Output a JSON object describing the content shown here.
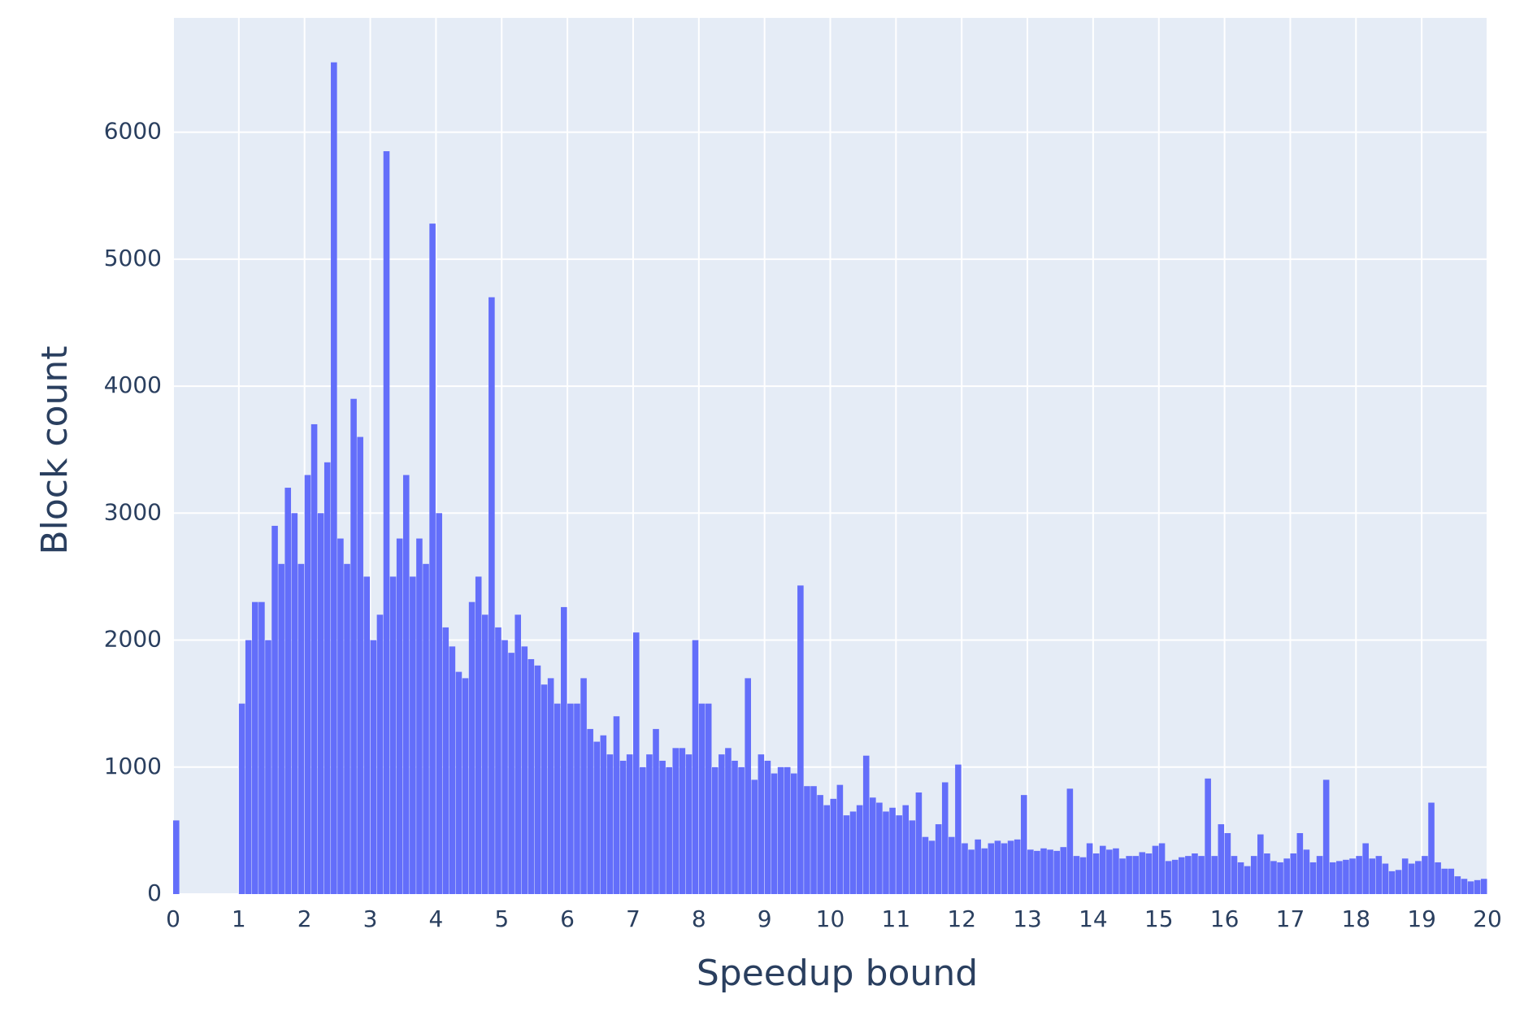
{
  "chart_data": {
    "type": "histogram",
    "xlabel": "Speedup bound",
    "ylabel": "Block count",
    "color": "#636efa",
    "grid": true,
    "xlim": [
      0,
      20
    ],
    "ylim": [
      0,
      6900
    ],
    "xticks": [
      0,
      1,
      2,
      3,
      4,
      5,
      6,
      7,
      8,
      9,
      10,
      11,
      12,
      13,
      14,
      15,
      16,
      17,
      18,
      19,
      20
    ],
    "yticks": [
      0,
      1000,
      2000,
      3000,
      4000,
      5000,
      6000
    ],
    "bins": [
      0,
      0.1,
      0.2,
      0.3,
      0.4,
      0.5,
      0.6,
      0.7,
      0.8,
      0.9,
      1,
      1.1,
      1.2,
      1.3,
      1.4,
      1.5,
      1.6,
      1.7,
      1.8,
      1.9,
      2,
      2.1,
      2.2,
      2.3,
      2.4,
      2.5,
      2.6,
      2.7,
      2.8,
      2.9,
      3,
      3.1,
      3.2,
      3.3,
      3.4,
      3.5,
      3.6,
      3.7,
      3.8,
      3.9,
      4,
      4.1,
      4.2,
      4.3,
      4.4,
      4.5,
      4.6,
      4.7,
      4.8,
      4.9,
      5,
      5.1,
      5.2,
      5.3,
      5.4,
      5.5,
      5.6,
      5.7,
      5.8,
      5.9,
      6,
      6.1,
      6.2,
      6.3,
      6.4,
      6.5,
      6.6,
      6.7,
      6.8,
      6.9,
      7,
      7.1,
      7.2,
      7.3,
      7.4,
      7.5,
      7.6,
      7.7,
      7.8,
      7.9,
      8,
      8.1,
      8.2,
      8.3,
      8.4,
      8.5,
      8.6,
      8.7,
      8.8,
      8.9,
      9,
      9.1,
      9.2,
      9.3,
      9.4,
      9.5,
      9.6,
      9.7,
      9.8,
      9.9,
      10,
      10.1,
      10.2,
      10.3,
      10.4,
      10.5,
      10.6,
      10.7,
      10.8,
      10.9,
      11,
      11.1,
      11.2,
      11.3,
      11.4,
      11.5,
      11.6,
      11.7,
      11.8,
      11.9,
      12,
      12.1,
      12.2,
      12.3,
      12.4,
      12.5,
      12.6,
      12.7,
      12.8,
      12.9,
      13,
      13.1,
      13.2,
      13.3,
      13.4,
      13.5,
      13.6,
      13.7,
      13.8,
      13.9,
      14,
      14.1,
      14.2,
      14.3,
      14.4,
      14.5,
      14.6,
      14.7,
      14.8,
      14.9,
      15,
      15.1,
      15.2,
      15.3,
      15.4,
      15.5,
      15.6,
      15.7,
      15.8,
      15.9,
      16,
      16.1,
      16.2,
      16.3,
      16.4,
      16.5,
      16.6,
      16.7,
      16.8,
      16.9,
      17,
      17.1,
      17.2,
      17.3,
      17.4,
      17.5,
      17.6,
      17.7,
      17.8,
      17.9,
      18,
      18.1,
      18.2,
      18.3,
      18.4,
      18.5,
      18.6,
      18.7,
      18.8,
      18.9,
      19,
      19.1,
      19.2,
      19.3,
      19.4,
      19.5,
      19.6,
      19.7,
      19.8,
      19.9,
      20
    ],
    "values": [
      580,
      0,
      0,
      0,
      0,
      0,
      0,
      0,
      0,
      0,
      1500,
      2000,
      2300,
      2300,
      2000,
      2900,
      2600,
      3200,
      3000,
      2600,
      3300,
      3700,
      3000,
      3400,
      6550,
      2800,
      2600,
      3900,
      3600,
      2500,
      2000,
      2200,
      5850,
      2500,
      2800,
      3300,
      2500,
      2800,
      2600,
      5280,
      3000,
      2100,
      1950,
      1750,
      1700,
      2300,
      2500,
      2200,
      4700,
      2100,
      2000,
      1900,
      2200,
      1950,
      1850,
      1800,
      1650,
      1700,
      1500,
      2260,
      1500,
      1500,
      1700,
      1300,
      1200,
      1250,
      1100,
      1400,
      1050,
      1100,
      2060,
      1000,
      1100,
      1300,
      1050,
      1000,
      1150,
      1150,
      1100,
      2000,
      1500,
      1500,
      1000,
      1100,
      1150,
      1050,
      1000,
      1700,
      900,
      1100,
      1050,
      950,
      1000,
      1000,
      950,
      2430,
      850,
      850,
      780,
      700,
      750,
      860,
      620,
      650,
      700,
      1090,
      760,
      720,
      650,
      680,
      620,
      700,
      580,
      800,
      450,
      420,
      550,
      880,
      450,
      1020,
      400,
      350,
      430,
      360,
      400,
      420,
      400,
      420,
      430,
      780,
      350,
      340,
      360,
      350,
      340,
      370,
      830,
      300,
      290,
      400,
      320,
      380,
      350,
      360,
      280,
      300,
      300,
      330,
      320,
      380,
      400,
      260,
      270,
      290,
      300,
      320,
      300,
      910,
      300,
      550,
      480,
      300,
      250,
      220,
      300,
      470,
      320,
      260,
      250,
      280,
      320,
      480,
      350,
      250,
      300,
      900,
      250,
      260,
      270,
      280,
      300,
      400,
      280,
      300,
      240,
      180,
      190,
      280,
      240,
      260,
      300,
      720,
      250,
      200,
      200,
      140,
      120,
      100,
      110,
      120
    ]
  }
}
